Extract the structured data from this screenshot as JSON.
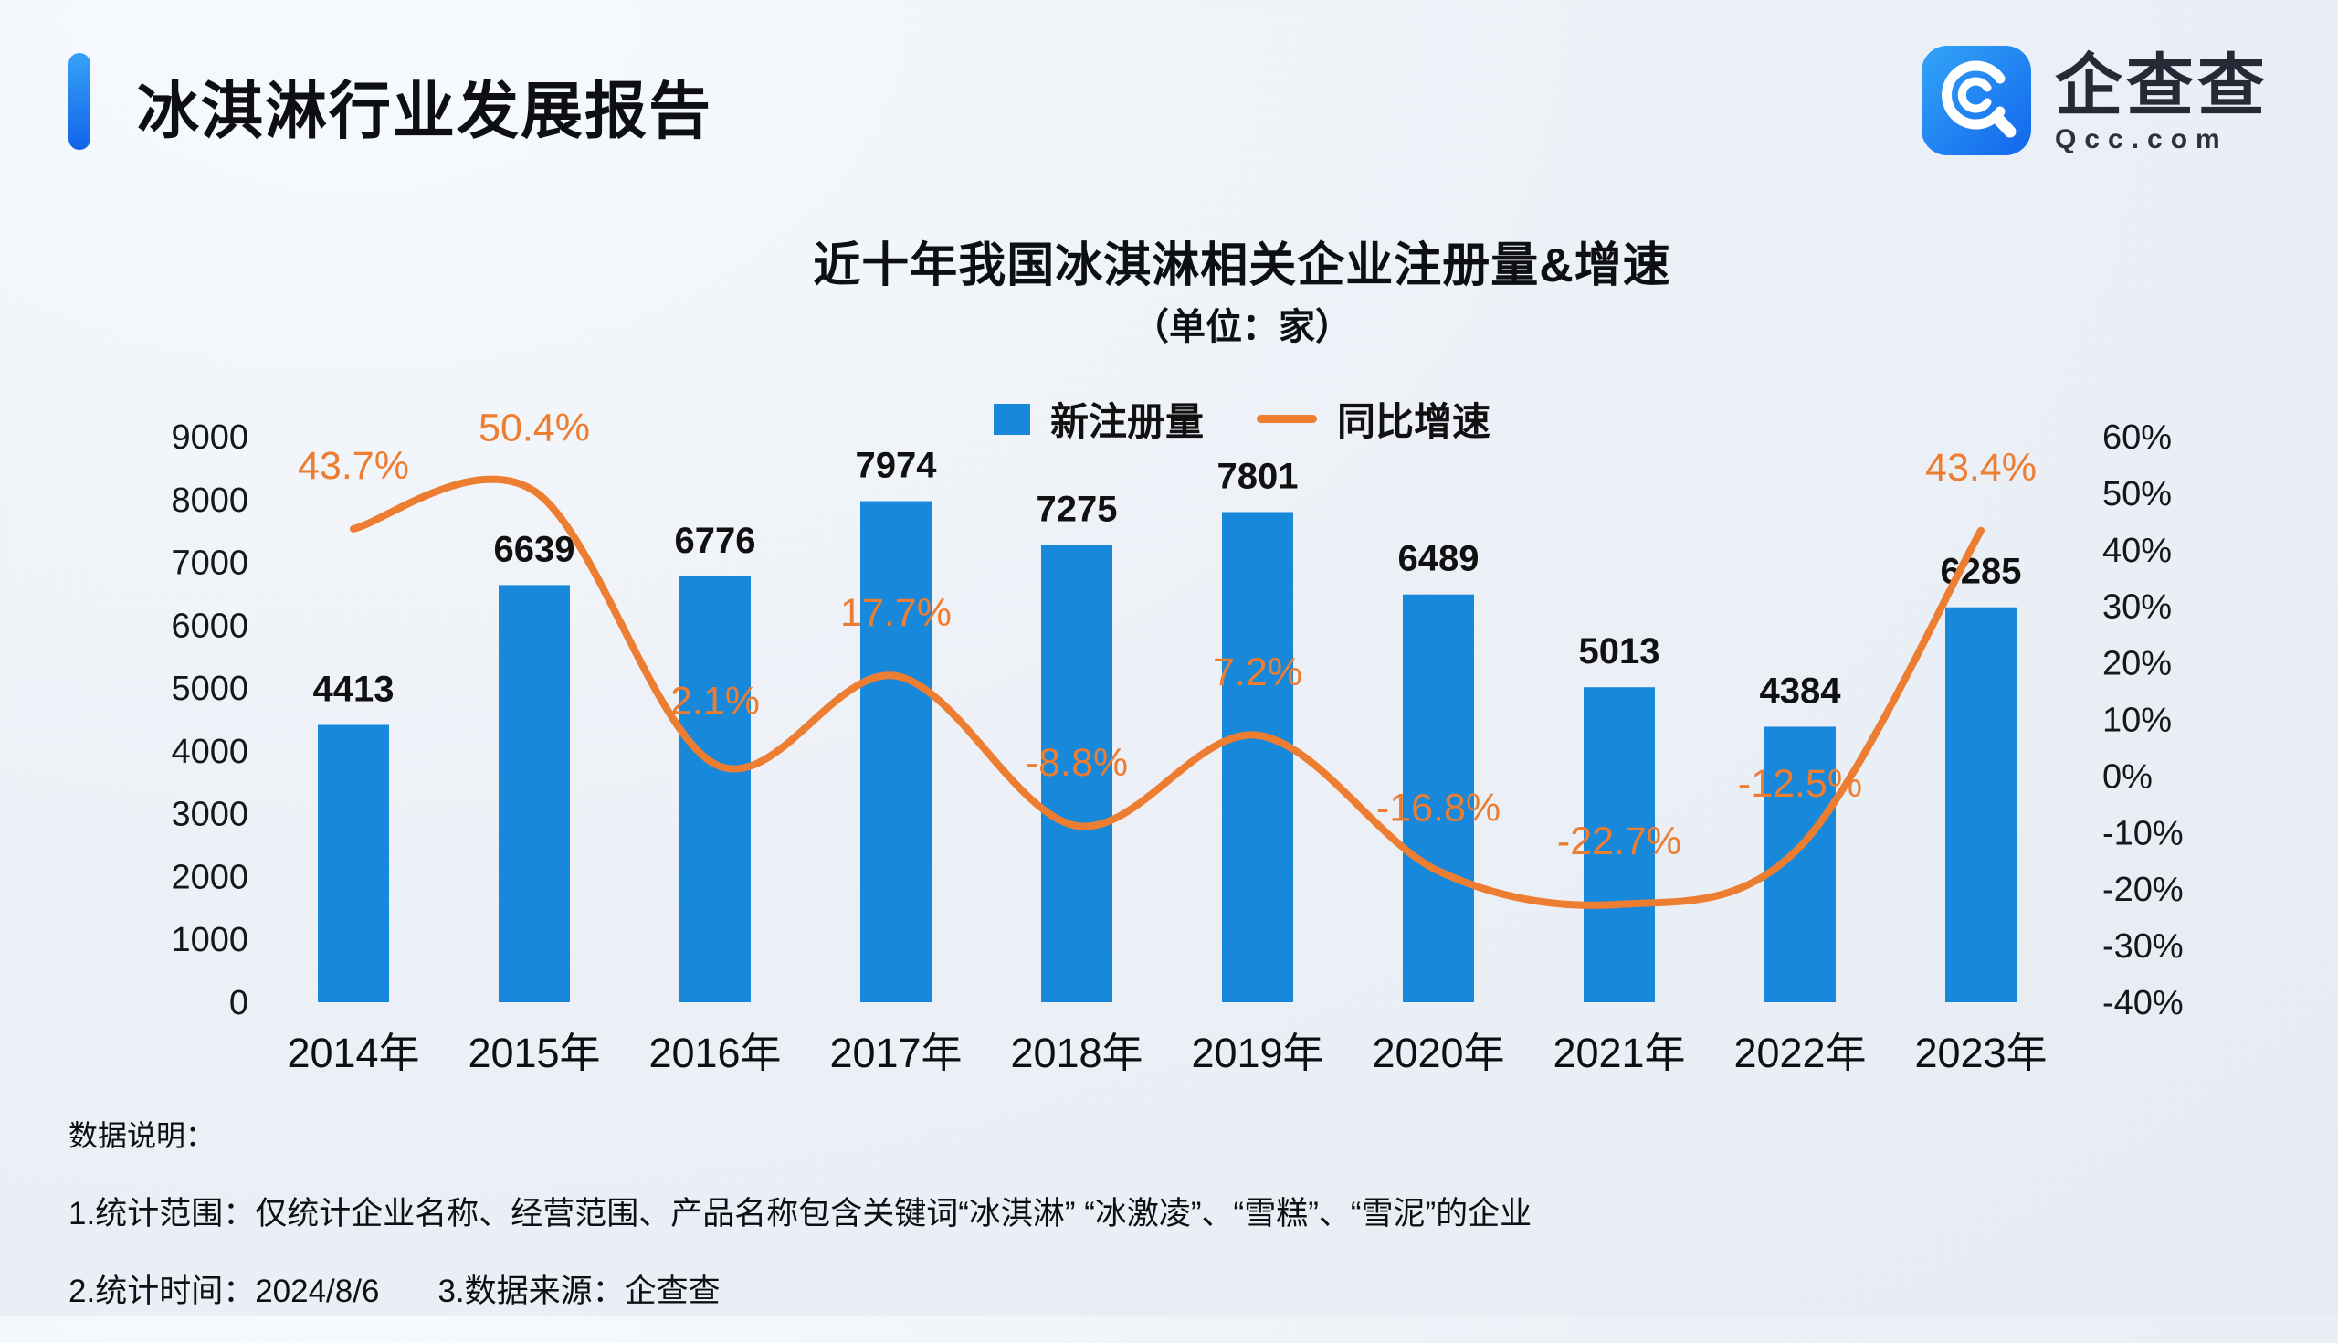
{
  "header": {
    "title": "冰淇淋行业发展报告"
  },
  "logo": {
    "name": "企查查",
    "domain": "Qcc.com"
  },
  "chart_data": {
    "type": "bar",
    "title": "近十年我国冰淇淋相关企业注册量&增速",
    "subtitle": "（单位：家）",
    "categories": [
      "2014年",
      "2015年",
      "2016年",
      "2017年",
      "2018年",
      "2019年",
      "2020年",
      "2021年",
      "2022年",
      "2023年"
    ],
    "series": [
      {
        "name": "新注册量",
        "type": "bar",
        "color": "#1888DB",
        "values": [
          4413,
          6639,
          6776,
          7974,
          7275,
          7801,
          6489,
          5013,
          4384,
          6285
        ]
      },
      {
        "name": "同比增速",
        "type": "line",
        "color": "#ED7D31",
        "label_suffix": "%",
        "values": [
          43.7,
          50.4,
          2.1,
          17.7,
          -8.8,
          7.2,
          -16.8,
          -22.7,
          -12.5,
          43.4
        ],
        "labels": [
          "43.7%",
          "50.4%",
          "2.1%",
          "17.7%",
          "-8.8%",
          "7.2%",
          "-16.8%",
          "-22.7%",
          "-12.5%",
          "43.4%"
        ]
      }
    ],
    "left_axis": {
      "min": 0,
      "max": 9000,
      "step": 1000,
      "ticks": [
        "9000",
        "8000",
        "7000",
        "6000",
        "5000",
        "4000",
        "3000",
        "2000",
        "1000",
        "0"
      ]
    },
    "right_axis": {
      "min": -40,
      "max": 60,
      "step": 10,
      "ticks": [
        "60%",
        "50%",
        "40%",
        "30%",
        "20%",
        "10%",
        "0%",
        "-10%",
        "-20%",
        "-30%",
        "-40%"
      ]
    },
    "legend_position": "top",
    "grid": false,
    "value_label_color": "#111111"
  },
  "footer": {
    "heading": "数据说明：",
    "line1": "1.统计范围：仅统计企业名称、经营范围、产品名称包含关键词“冰淇淋” “冰激凌”、“雪糕”、“雪泥”的企业",
    "line2a": "2.统计时间：2024/8/6",
    "line2b": "3.数据来源：企查查"
  }
}
